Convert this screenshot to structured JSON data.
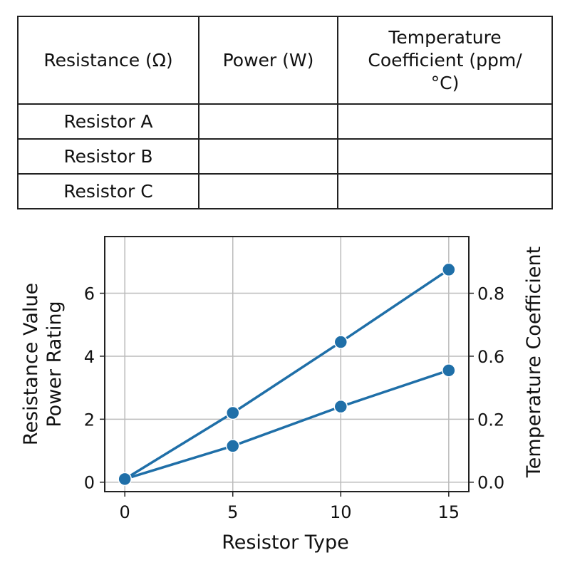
{
  "table": {
    "headers": [
      "Resistance (Ω)",
      "Power (W)",
      "Temperature Coefficient (ppm/°C)"
    ],
    "rows": [
      [
        "Resistor A",
        "",
        ""
      ],
      [
        "Resistor B",
        "",
        ""
      ],
      [
        "Resistor C",
        "",
        ""
      ]
    ]
  },
  "chart_data": {
    "type": "line",
    "xlabel": "Resistor Type",
    "ylabel_lines": [
      "Resistance Value",
      "Power Rating"
    ],
    "ylabel_right": "Temperature Coefficient",
    "x": [
      0,
      5,
      10,
      15
    ],
    "xticks": [
      0,
      5,
      10,
      15
    ],
    "yticks": [
      0,
      2,
      4,
      6
    ],
    "yticks_right_labels": [
      "0.0",
      "0.2",
      "0.6",
      "0.8"
    ],
    "xlim": [
      -0.93,
      15.93
    ],
    "ylim": [
      -0.3,
      7.8
    ],
    "grid": true,
    "color": "#1f6fa8",
    "series": [
      {
        "values": [
          0.1,
          2.2,
          4.45,
          6.75
        ]
      },
      {
        "values": [
          0.1,
          1.15,
          2.4,
          3.55
        ]
      }
    ]
  }
}
